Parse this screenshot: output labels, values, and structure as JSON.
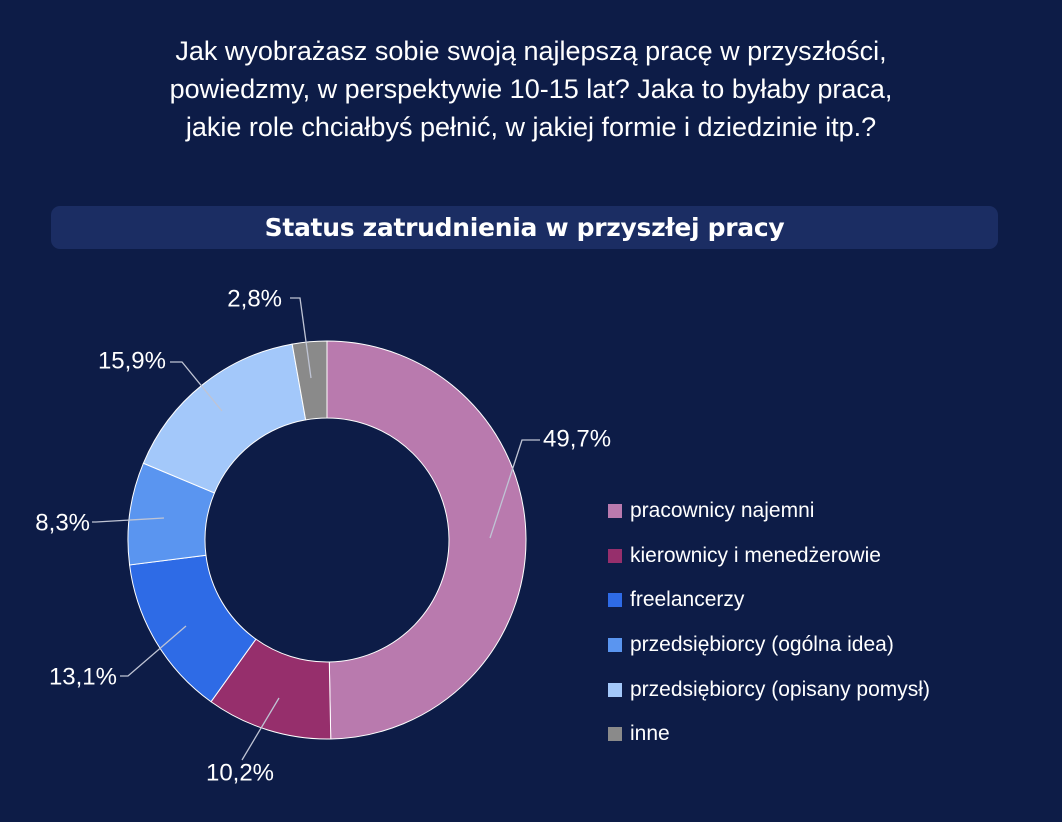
{
  "question": {
    "lines": [
      "Jak wyobrażasz sobie swoją najlepszą pracę w przyszłości,",
      "powiedzmy, w perspektywie 10-15 lat? Jaka to byłaby praca,",
      "jakie role chciałbyś pełnić, w jakiej formie i dziedzinie itp.?"
    ]
  },
  "chart_data": {
    "type": "pie",
    "donut": true,
    "title": "Status zatrudnienia w przyszłej pracy",
    "legend_position": "right",
    "slices": [
      {
        "label": "pracownicy najemni",
        "value": 49.7,
        "value_label": "49,7%",
        "color": "#b97aae"
      },
      {
        "label": "kierownicy i menedżerowie",
        "value": 10.2,
        "value_label": "10,2%",
        "color": "#962f6c"
      },
      {
        "label": "freelancerzy",
        "value": 13.1,
        "value_label": "13,1%",
        "color": "#2e6be6"
      },
      {
        "label": "przedsiębiorcy (ogólna idea)",
        "value": 8.3,
        "value_label": "8,3%",
        "color": "#5a95f0"
      },
      {
        "label": "przedsiębiorcy (opisany pomysł)",
        "value": 15.9,
        "value_label": "15,9%",
        "color": "#a3c8fa"
      },
      {
        "label": "inne",
        "value": 2.8,
        "value_label": "2,8%",
        "color": "#8a8a8a"
      }
    ]
  }
}
